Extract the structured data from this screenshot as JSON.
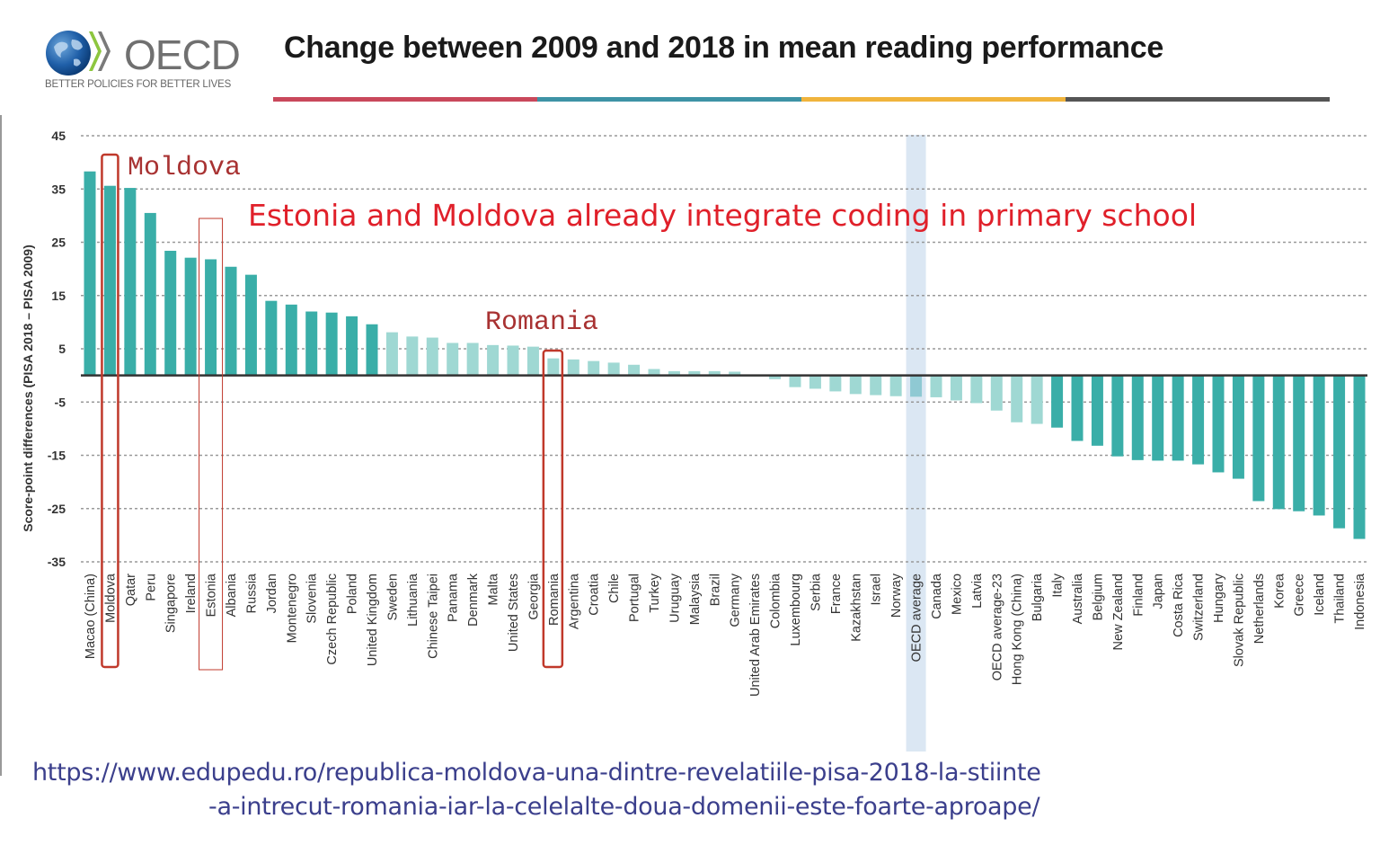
{
  "header": {
    "logo_text": "OECD",
    "logo_tagline": "BETTER POLICIES FOR BETTER LIVES",
    "rule_colors": [
      "#c9485b",
      "#3e93a6",
      "#f0b43c",
      "#555555"
    ]
  },
  "annotations": {
    "note": "Estonia and Moldova already integrate coding in primary school",
    "callout_moldova": "Moldova",
    "callout_romania": "Romania",
    "highlighted": [
      "Moldova",
      "Estonia",
      "Romania"
    ],
    "highlight_color": "#c0392b",
    "source_url_line1": "https://www.edupedu.ro/republica-moldova-una-dintre-revelatiile-pisa-2018-la-stiinte",
    "source_url_line2": "-a-intrecut-romania-iar-la-celelalte-doua-domenii-este-foarte-aproape/"
  },
  "colors": {
    "significant": "#3aaea8",
    "not_significant": "#9fd8d3",
    "oecd_band": "#dbe7f3",
    "oecd_bar": "#8fc9d3",
    "grid": "#999999",
    "zero_line": "#333333"
  },
  "chart_data": {
    "type": "bar",
    "title": "Change between 2009 and 2018 in mean reading performance",
    "xlabel": "",
    "ylabel": "Score-point differences (PISA 2018 – PISA 2009)",
    "ylim": [
      -35,
      45
    ],
    "yticks": [
      45,
      35,
      25,
      15,
      5,
      -5,
      -15,
      -25,
      -35
    ],
    "grid": true,
    "legend": "none",
    "categories": [
      "Macao (China)",
      "Moldova",
      "Qatar",
      "Peru",
      "Singapore",
      "Ireland",
      "Estonia",
      "Albania",
      "Russia",
      "Jordan",
      "Montenegro",
      "Slovenia",
      "Czech Republic",
      "Poland",
      "United Kingdom",
      "Sweden",
      "Lithuania",
      "Chinese Taipei",
      "Panama",
      "Denmark",
      "Malta",
      "United States",
      "Georgia",
      "Romania",
      "Argentina",
      "Croatia",
      "Chile",
      "Portugal",
      "Turkey",
      "Uruguay",
      "Malaysia",
      "Brazil",
      "Germany",
      "United Arab Emirates",
      "Colombia",
      "Luxembourg",
      "Serbia",
      "France",
      "Kazakhstan",
      "Israel",
      "Norway",
      "OECD average",
      "Canada",
      "Mexico",
      "Latvia",
      "OECD average-23",
      "Hong Kong (China)",
      "Bulgaria",
      "Italy",
      "Australia",
      "Belgium",
      "New Zealand",
      "Finland",
      "Japan",
      "Costa Rica",
      "Switzerland",
      "Hungary",
      "Slovak Republic",
      "Netherlands",
      "Korea",
      "Greece",
      "Iceland",
      "Thailand",
      "Indonesia"
    ],
    "values": [
      38.3,
      35.6,
      35.2,
      30.5,
      23.4,
      22.1,
      21.8,
      20.4,
      18.9,
      14.0,
      13.3,
      12.0,
      11.8,
      11.1,
      9.6,
      8.1,
      7.3,
      7.1,
      6.1,
      6.1,
      5.7,
      5.6,
      5.4,
      3.2,
      3.0,
      2.7,
      2.4,
      2.0,
      1.2,
      0.8,
      0.8,
      0.8,
      0.7,
      0.0,
      -0.7,
      -2.2,
      -2.5,
      -3.0,
      -3.5,
      -3.7,
      -3.9,
      -4.0,
      -4.1,
      -4.7,
      -5.2,
      -6.6,
      -8.8,
      -9.1,
      -9.8,
      -12.3,
      -13.2,
      -15.2,
      -15.9,
      -16.0,
      -16.0,
      -16.7,
      -18.2,
      -19.4,
      -23.6,
      -25.1,
      -25.5,
      -26.3,
      -28.7,
      -30.7
    ],
    "significant": [
      true,
      true,
      true,
      true,
      true,
      true,
      true,
      true,
      true,
      true,
      true,
      true,
      true,
      true,
      true,
      false,
      false,
      false,
      false,
      false,
      false,
      false,
      false,
      false,
      false,
      false,
      false,
      false,
      false,
      false,
      false,
      false,
      false,
      false,
      false,
      false,
      false,
      false,
      false,
      false,
      false,
      false,
      false,
      false,
      false,
      false,
      false,
      false,
      true,
      true,
      true,
      true,
      true,
      true,
      true,
      true,
      true,
      true,
      true,
      true,
      true,
      true,
      true,
      true
    ]
  }
}
